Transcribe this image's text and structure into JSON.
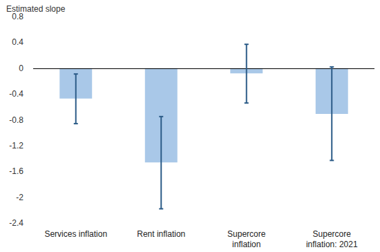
{
  "chart_data": {
    "type": "bar",
    "ylabel": "Estimated slope",
    "categories": [
      "Services inflation",
      "Rent inflation",
      "Supercore\ninflation",
      "Supercore\ninflation: 2021"
    ],
    "values": [
      -0.47,
      -1.46,
      -0.08,
      -0.71
    ],
    "lower": [
      -0.86,
      -2.18,
      -0.54,
      -1.43
    ],
    "upper": [
      -0.09,
      -0.75,
      0.37,
      0.02
    ],
    "color": "#a9c8e8",
    "ylim": [
      -2.4,
      0.8
    ],
    "yticks": [
      -2.4,
      -2,
      -1.6,
      -1.2,
      -0.8,
      -0.4,
      0,
      0.4,
      0.8
    ],
    "grid": false
  }
}
